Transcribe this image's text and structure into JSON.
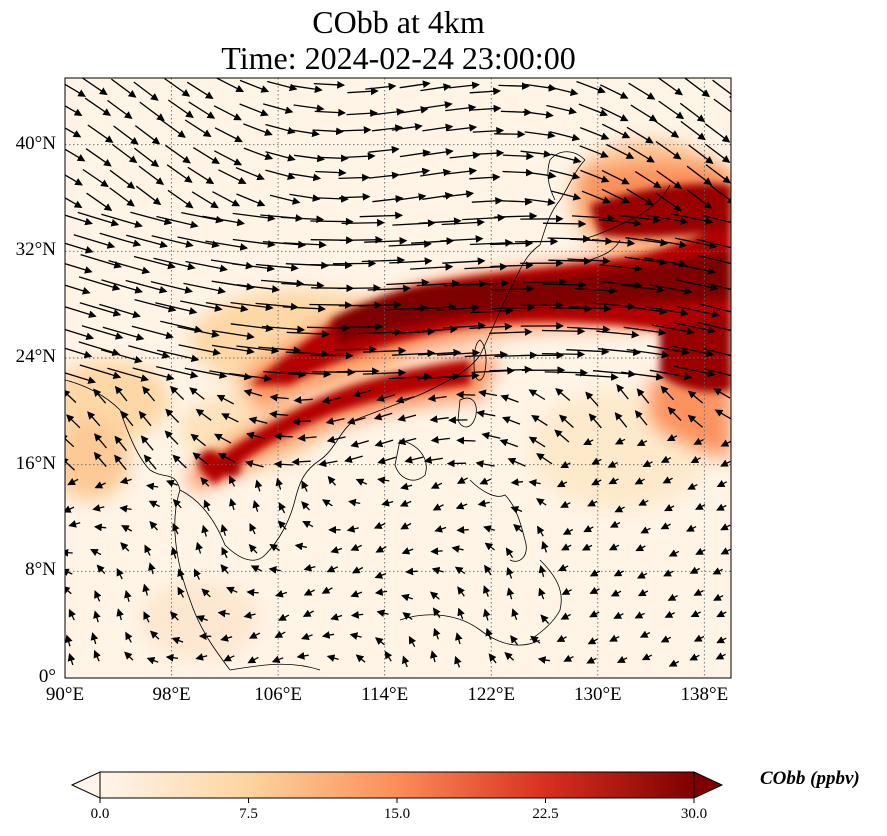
{
  "title": {
    "line1": "CObb at 4km",
    "line2": "Time: 2024-02-24 23:00:00"
  },
  "map": {
    "lon_range": [
      90,
      140
    ],
    "lat_range": [
      0,
      45
    ],
    "lon_ticks": [
      {
        "value": 90,
        "label": "90°E"
      },
      {
        "value": 98,
        "label": "98°E"
      },
      {
        "value": 106,
        "label": "106°E"
      },
      {
        "value": 114,
        "label": "114°E"
      },
      {
        "value": 122,
        "label": "122°E"
      },
      {
        "value": 130,
        "label": "130°E"
      },
      {
        "value": 138,
        "label": "138°E"
      }
    ],
    "lat_ticks": [
      {
        "value": 0,
        "label": "0°"
      },
      {
        "value": 8,
        "label": "8°N"
      },
      {
        "value": 16,
        "label": "16°N"
      },
      {
        "value": 24,
        "label": "24°N"
      },
      {
        "value": 32,
        "label": "32°N"
      },
      {
        "value": 40,
        "label": "40°N"
      }
    ],
    "gridlines": true,
    "field": "CObb",
    "overlay": "wind vectors"
  },
  "colorbar": {
    "label": "CObb (ppbv)",
    "min": 0,
    "max": 30,
    "ticks": [
      {
        "value": 0,
        "label": "0.0"
      },
      {
        "value": 7.5,
        "label": "7.5"
      },
      {
        "value": 15,
        "label": "15.0"
      },
      {
        "value": 22.5,
        "label": "22.5"
      },
      {
        "value": 30,
        "label": "30.0"
      }
    ],
    "colors": [
      "#fff5eb",
      "#fdd49e",
      "#fc8d59",
      "#d7301f",
      "#7f0000"
    ],
    "extend": "both"
  }
}
